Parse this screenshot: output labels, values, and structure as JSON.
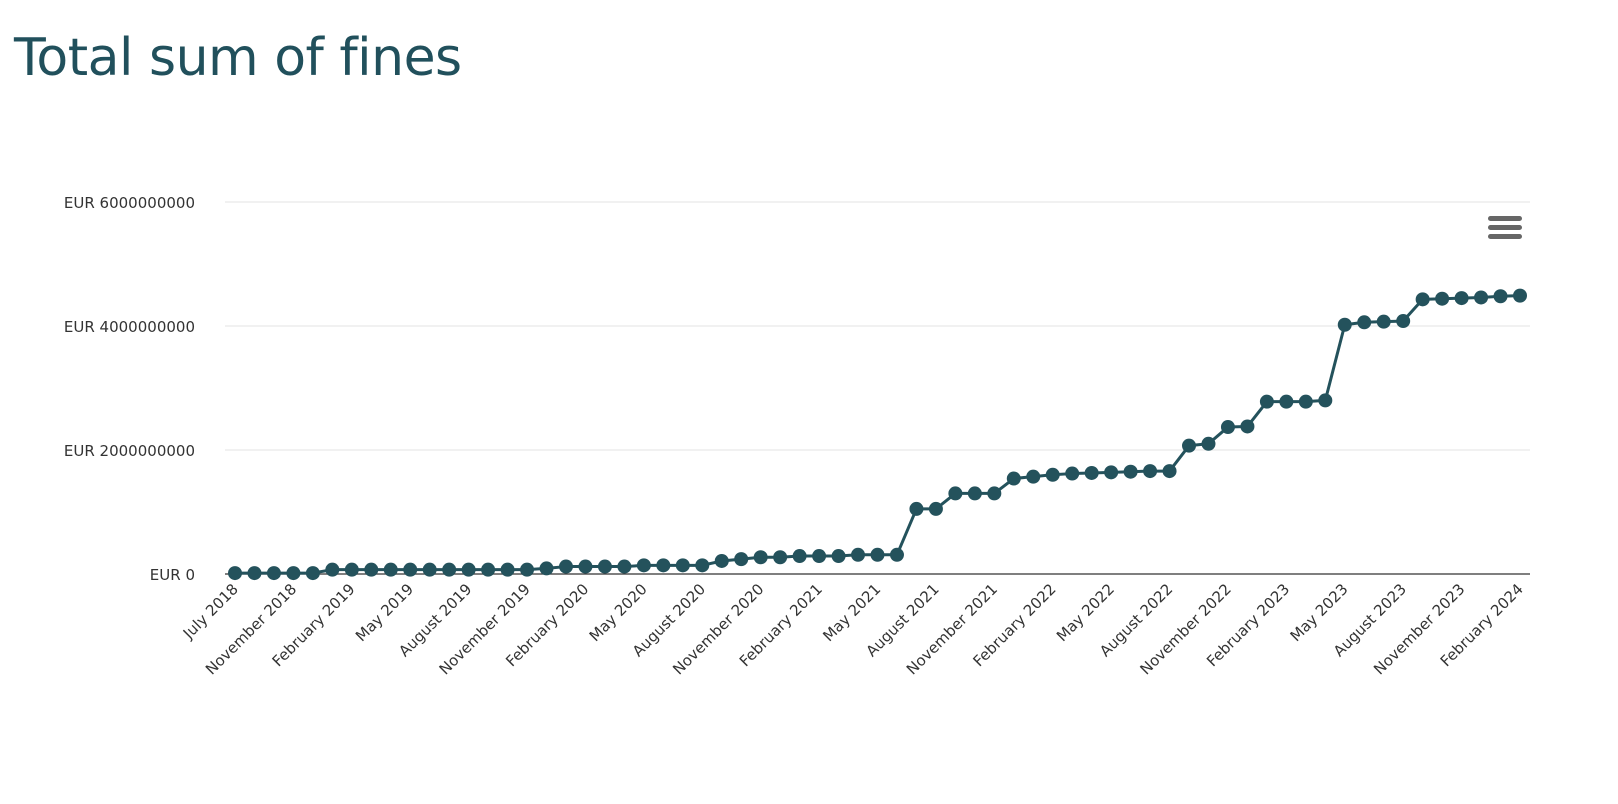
{
  "chart_data": {
    "type": "line",
    "title": "Total sum of fines",
    "xlabel": "",
    "ylabel": "",
    "ylim": [
      0,
      6000000000
    ],
    "y_ticks": [
      0,
      2000000000,
      4000000000,
      6000000000
    ],
    "y_tick_labels": [
      "EUR 0",
      "EUR 2000000000",
      "EUR 4000000000",
      "EUR 6000000000"
    ],
    "grid": true,
    "legend": "none",
    "color": "#24525c",
    "x_tick_labels": [
      "July 2018",
      "November 2018",
      "February 2019",
      "May 2019",
      "August 2019",
      "November 2019",
      "February 2020",
      "May 2020",
      "August 2020",
      "November 2020",
      "February 2021",
      "May 2021",
      "August 2021",
      "November 2021",
      "February 2022",
      "May 2022",
      "August 2022",
      "November 2022",
      "February 2023",
      "May 2023",
      "August 2023",
      "November 2023",
      "February 2024"
    ],
    "x_tick_indices": [
      0,
      3,
      6,
      9,
      12,
      15,
      18,
      21,
      24,
      27,
      30,
      33,
      36,
      39,
      42,
      45,
      48,
      51,
      54,
      57,
      60,
      63,
      66
    ],
    "point_count": 67,
    "values": [
      15000000,
      15000000,
      15000000,
      15000000,
      15000000,
      70000000,
      70000000,
      70000000,
      70000000,
      70000000,
      70000000,
      70000000,
      70000000,
      70000000,
      70000000,
      70000000,
      90000000,
      120000000,
      120000000,
      120000000,
      120000000,
      140000000,
      140000000,
      140000000,
      140000000,
      210000000,
      240000000,
      270000000,
      270000000,
      290000000,
      290000000,
      290000000,
      310000000,
      310000000,
      310000000,
      1050000000,
      1050000000,
      1300000000,
      1300000000,
      1300000000,
      1540000000,
      1570000000,
      1600000000,
      1620000000,
      1630000000,
      1640000000,
      1650000000,
      1660000000,
      1660000000,
      2070000000,
      2100000000,
      2370000000,
      2380000000,
      2780000000,
      2780000000,
      2780000000,
      2800000000,
      4020000000,
      4060000000,
      4070000000,
      4080000000,
      4430000000,
      4440000000,
      4450000000,
      4460000000,
      4480000000,
      4490000000
    ]
  },
  "menu": {
    "icon": "hamburger-menu-icon"
  }
}
